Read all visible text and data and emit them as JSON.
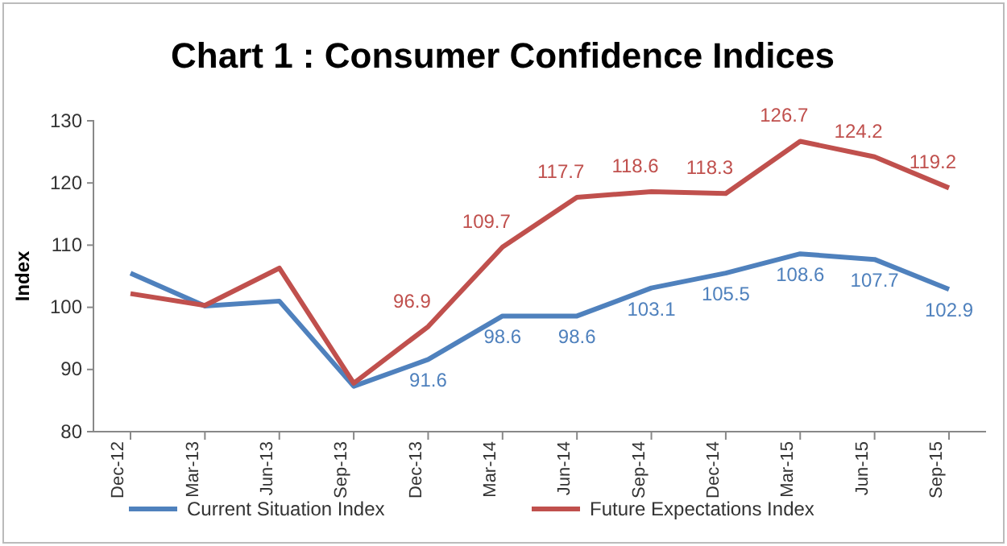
{
  "chart_data": {
    "type": "line",
    "title": "Chart 1 : Consumer Confidence Indices",
    "ylabel": "Index",
    "categories": [
      "Dec-12",
      "Mar-13",
      "Jun-13",
      "Sep-13",
      "Dec-13",
      "Mar-14",
      "Jun-14",
      "Sep-14",
      "Dec-14",
      "Mar-15",
      "Jun-15",
      "Sep-15"
    ],
    "series": [
      {
        "name": "Current Situation Index",
        "color": "#4f81bd",
        "values": [
          105.5,
          100.2,
          101,
          87.3,
          91.6,
          98.6,
          98.6,
          103.1,
          105.5,
          108.6,
          107.7,
          102.9
        ],
        "value_labels": [
          null,
          null,
          null,
          null,
          "91.6",
          "98.6",
          "98.6",
          "103.1",
          "105.5",
          "108.6",
          "107.7",
          "102.9"
        ]
      },
      {
        "name": "Future Expectations Index",
        "color": "#c0504d",
        "values": [
          102.2,
          100.3,
          106.3,
          87.8,
          96.9,
          109.7,
          117.7,
          118.6,
          118.3,
          126.7,
          124.2,
          119.2
        ],
        "value_labels": [
          null,
          null,
          null,
          null,
          "96.9",
          "109.7",
          "117.7",
          "118.6",
          "118.3",
          "126.7",
          "124.2",
          "119.2"
        ]
      }
    ],
    "ylim": [
      80,
      130
    ],
    "yticks": [
      80,
      90,
      100,
      110,
      120,
      130
    ],
    "grid": false,
    "legend": "bottom",
    "marker": "none",
    "line_style": "solid"
  }
}
